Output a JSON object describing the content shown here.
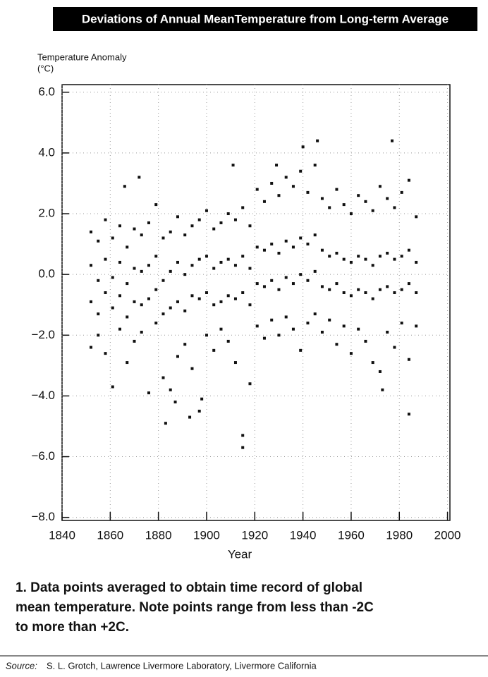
{
  "chart_data": {
    "type": "scatter",
    "title": "Deviations of Annual MeanTemperature from Long-term Average",
    "ylabel": "Temperature Anomaly",
    "ylabel_unit": "(°C)",
    "xlabel": "Year",
    "color": "#111111",
    "grid": true,
    "xlim": [
      1840,
      2001
    ],
    "xticks": [
      1840,
      1860,
      1880,
      1900,
      1920,
      1940,
      1960,
      1980,
      2000
    ],
    "ylim": [
      -8.1,
      6.25
    ],
    "yticks": [
      {
        "value": -8,
        "label": "−8.0"
      },
      {
        "value": -6,
        "label": "−6.0"
      },
      {
        "value": -4,
        "label": "−4.0"
      },
      {
        "value": -2,
        "label": "−2.0"
      },
      {
        "value": 0,
        "label": "0.0"
      },
      {
        "value": 2,
        "label": "2.0"
      },
      {
        "value": 4,
        "label": "4.0"
      },
      {
        "value": 6,
        "label": "6.0"
      }
    ],
    "x": [
      1852,
      1852,
      1852,
      1852,
      1855,
      1855,
      1855,
      1855,
      1858,
      1858,
      1858,
      1858,
      1861,
      1861,
      1861,
      1861,
      1864,
      1864,
      1864,
      1864,
      1867,
      1867,
      1867,
      1867,
      1870,
      1870,
      1870,
      1870,
      1873,
      1873,
      1873,
      1873,
      1876,
      1876,
      1876,
      1876,
      1879,
      1879,
      1879,
      1879,
      1882,
      1882,
      1882,
      1882,
      1885,
      1885,
      1885,
      1885,
      1888,
      1888,
      1888,
      1888,
      1891,
      1891,
      1891,
      1891,
      1894,
      1894,
      1894,
      1894,
      1897,
      1897,
      1897,
      1897,
      1900,
      1900,
      1900,
      1900,
      1903,
      1903,
      1903,
      1903,
      1906,
      1906,
      1906,
      1906,
      1909,
      1909,
      1909,
      1909,
      1912,
      1912,
      1912,
      1912,
      1915,
      1915,
      1915,
      1915,
      1918,
      1918,
      1918,
      1918,
      1921,
      1921,
      1921,
      1921,
      1924,
      1924,
      1924,
      1924,
      1927,
      1927,
      1927,
      1927,
      1930,
      1930,
      1930,
      1930,
      1933,
      1933,
      1933,
      1933,
      1936,
      1936,
      1936,
      1936,
      1939,
      1939,
      1939,
      1939,
      1942,
      1942,
      1942,
      1942,
      1945,
      1945,
      1945,
      1945,
      1948,
      1948,
      1948,
      1948,
      1951,
      1951,
      1951,
      1951,
      1954,
      1954,
      1954,
      1954,
      1957,
      1957,
      1957,
      1957,
      1960,
      1960,
      1960,
      1960,
      1963,
      1963,
      1963,
      1963,
      1966,
      1966,
      1966,
      1966,
      1969,
      1969,
      1969,
      1969,
      1972,
      1972,
      1972,
      1972,
      1975,
      1975,
      1975,
      1975,
      1978,
      1978,
      1978,
      1978,
      1981,
      1981,
      1981,
      1981,
      1984,
      1984,
      1984,
      1984,
      1987,
      1987,
      1987,
      1987,
      1915,
      1883,
      1887,
      1893,
      1977,
      1946,
      1940,
      1984,
      1973,
      1866,
      1872,
      1911,
      1929,
      1898
    ],
    "values": [
      1.4,
      0.3,
      -0.9,
      -2.4,
      1.1,
      -0.2,
      -1.3,
      -2.0,
      1.8,
      0.5,
      -0.6,
      -2.6,
      1.2,
      -0.1,
      -1.1,
      -3.7,
      1.6,
      0.4,
      -0.7,
      -1.8,
      0.9,
      -0.3,
      -1.4,
      -2.9,
      1.5,
      0.2,
      -0.9,
      -2.2,
      1.3,
      0.1,
      -1.0,
      -1.9,
      1.7,
      0.3,
      -0.8,
      -3.9,
      2.3,
      0.6,
      -0.5,
      -1.6,
      1.2,
      -0.2,
      -1.3,
      -3.4,
      1.4,
      0.1,
      -1.1,
      -3.8,
      1.9,
      0.4,
      -0.9,
      -2.7,
      1.3,
      0.0,
      -1.2,
      -2.3,
      1.6,
      0.3,
      -0.7,
      -3.1,
      1.8,
      0.5,
      -0.8,
      -4.5,
      2.1,
      0.6,
      -0.6,
      -2.0,
      1.5,
      0.2,
      -1.0,
      -2.5,
      1.7,
      0.4,
      -0.9,
      -1.8,
      2.0,
      0.5,
      -0.7,
      -2.2,
      1.8,
      0.3,
      -0.8,
      -2.9,
      2.2,
      0.6,
      -0.6,
      -5.3,
      1.6,
      0.2,
      -1.0,
      -3.6,
      2.8,
      0.9,
      -0.3,
      -1.7,
      2.4,
      0.8,
      -0.4,
      -2.1,
      3.0,
      1.0,
      -0.2,
      -1.5,
      2.6,
      0.7,
      -0.5,
      -2.0,
      3.2,
      1.1,
      -0.1,
      -1.4,
      2.9,
      0.9,
      -0.3,
      -1.8,
      3.4,
      1.2,
      0.0,
      -2.5,
      2.7,
      1.0,
      -0.2,
      -1.6,
      3.6,
      1.3,
      0.1,
      -1.3,
      2.5,
      0.8,
      -0.4,
      -1.9,
      2.2,
      0.6,
      -0.5,
      -1.5,
      2.8,
      0.7,
      -0.3,
      -2.3,
      2.3,
      0.5,
      -0.6,
      -1.7,
      2.0,
      0.4,
      -0.7,
      -2.6,
      2.6,
      0.6,
      -0.5,
      -1.8,
      2.4,
      0.5,
      -0.6,
      -2.2,
      2.1,
      0.3,
      -0.8,
      -2.9,
      2.9,
      0.6,
      -0.5,
      -3.2,
      2.5,
      0.7,
      -0.4,
      -1.9,
      2.2,
      0.5,
      -0.6,
      -2.4,
      2.7,
      0.6,
      -0.5,
      -1.6,
      3.1,
      0.8,
      -0.3,
      -2.8,
      1.9,
      0.4,
      -0.6,
      -1.7,
      -5.7,
      -4.9,
      -4.2,
      -4.7,
      4.4,
      4.4,
      4.2,
      -4.6,
      -3.8,
      2.9,
      3.2,
      3.6,
      3.6,
      -4.1
    ]
  },
  "caption": [
    "1.  Data points averaged to obtain time record of global",
    "mean temperature.  Note points range from less than -2C",
    "to more than +2C."
  ],
  "source_label": "Source:",
  "source": "S. L. Grotch, Lawrence Livermore Laboratory, Livermore California"
}
